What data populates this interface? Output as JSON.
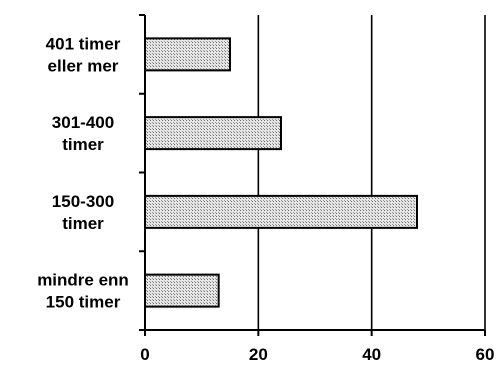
{
  "chart_data": {
    "type": "bar",
    "orientation": "horizontal",
    "categories": [
      [
        "401 timer",
        "eller mer"
      ],
      [
        "301-400",
        "timer"
      ],
      [
        "150-300",
        "timer"
      ],
      [
        "mindre enn",
        "150 timer"
      ]
    ],
    "values": [
      15,
      24,
      48,
      13
    ],
    "xlim": [
      0,
      60
    ],
    "xticks": [
      0,
      20,
      40,
      60
    ],
    "grid": "vertical lines at x ticks",
    "bar_fill": "#d4d4d4",
    "bar_stroke": "#000000",
    "title": "",
    "xlabel": "",
    "ylabel": ""
  }
}
